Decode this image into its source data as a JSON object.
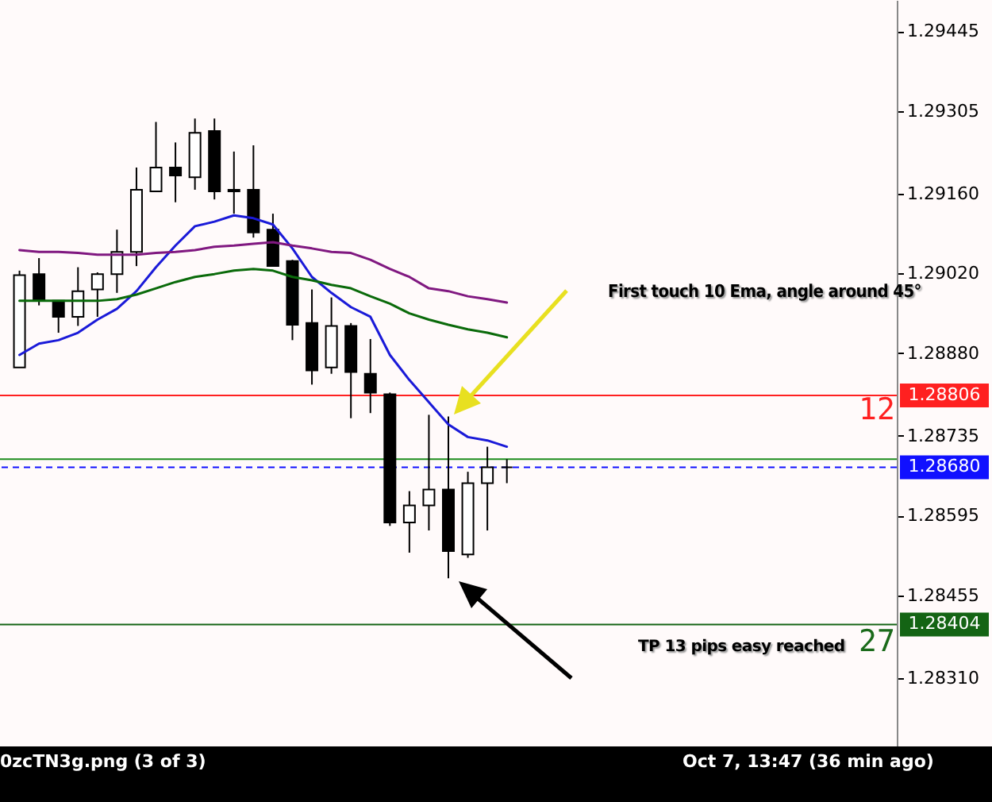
{
  "chart_data": {
    "type": "candlestick",
    "categories": [
      null,
      null,
      null,
      null,
      null,
      null,
      null,
      null,
      null,
      null,
      null,
      null,
      null,
      null,
      null,
      null,
      null,
      null,
      null,
      null,
      null,
      null,
      null,
      null,
      null,
      null,
      null,
      null,
      null,
      null,
      null,
      null,
      null,
      null,
      null,
      null,
      null,
      null,
      null,
      null,
      null,
      null,
      null,
      null,
      null
    ],
    "ohlc": [
      [
        1.28855,
        1.29025,
        1.28855,
        1.29017
      ],
      [
        1.29019,
        1.29047,
        1.28964,
        1.28972
      ],
      [
        1.28972,
        1.28972,
        1.28916,
        1.28944
      ],
      [
        1.28944,
        1.29031,
        1.28928,
        1.28989
      ],
      [
        1.28992,
        1.29022,
        1.28944,
        1.29019
      ],
      [
        1.29019,
        1.29097,
        1.28986,
        1.29058
      ],
      [
        1.29058,
        1.29206,
        1.29033,
        1.29167
      ],
      [
        1.29164,
        1.29286,
        1.29164,
        1.29206
      ],
      [
        1.29206,
        1.2925,
        1.29145,
        1.29192
      ],
      [
        1.29189,
        1.29292,
        1.29167,
        1.29267
      ],
      [
        1.2927,
        1.29292,
        1.2915,
        1.29164
      ],
      [
        1.29167,
        1.29234,
        1.29125,
        1.29164
      ],
      [
        1.29167,
        1.29245,
        1.29083,
        1.29092
      ],
      [
        1.29097,
        1.29125,
        1.29033,
        1.29033
      ],
      [
        1.29042,
        1.29044,
        1.28903,
        1.2893
      ],
      [
        1.28933,
        1.28992,
        1.28825,
        1.2885
      ],
      [
        1.28855,
        1.28978,
        1.28844,
        1.28928
      ],
      [
        1.28928,
        1.28933,
        1.28766,
        1.28847
      ],
      [
        1.28844,
        1.28905,
        1.28775,
        1.28811
      ],
      [
        1.28808,
        1.28811,
        1.28577,
        1.28583
      ],
      [
        1.28583,
        1.28638,
        1.2853,
        1.28613
      ],
      [
        1.28613,
        1.28772,
        1.28569,
        1.28641
      ],
      [
        1.28641,
        1.28769,
        1.28485,
        1.28533
      ],
      [
        1.28527,
        1.28672,
        1.28521,
        1.28652
      ],
      [
        1.28652,
        1.28716,
        1.28569,
        1.2868
      ],
      [
        1.2868,
        1.28694,
        1.28652,
        1.2868
      ],
      null,
      null,
      null,
      null,
      null,
      null,
      null,
      null,
      null,
      null,
      null,
      null,
      null,
      null,
      null,
      null,
      null,
      null,
      null
    ],
    "series": [
      {
        "type": "line",
        "color": "#1a1ad8",
        "values": [
          1.28877,
          1.28897,
          1.28903,
          1.28916,
          1.28939,
          1.28958,
          1.28989,
          1.29031,
          1.29069,
          1.29103,
          1.29111,
          1.29122,
          1.29117,
          1.29106,
          1.29064,
          1.29014,
          1.28986,
          1.28961,
          1.28944,
          1.28877,
          1.28833,
          1.28794,
          1.28755,
          1.28733,
          1.28727,
          1.28716,
          null,
          null,
          null,
          null,
          null,
          null,
          null,
          null,
          null,
          null,
          null,
          null,
          null,
          null,
          null,
          null,
          null,
          null,
          null
        ]
      },
      {
        "type": "line",
        "color": "#0a6a0a",
        "values": [
          1.28972,
          1.28972,
          1.28972,
          1.28972,
          1.28972,
          1.28975,
          1.28983,
          1.28994,
          1.29005,
          1.29014,
          1.29019,
          1.29025,
          1.29028,
          1.29025,
          1.29014,
          1.29008,
          1.29,
          1.28994,
          1.2898,
          1.28967,
          1.2895,
          1.28939,
          1.2893,
          1.28922,
          1.28916,
          1.28908,
          null,
          null,
          null,
          null,
          null,
          null,
          null,
          null,
          null,
          null,
          null,
          null,
          null,
          null,
          null,
          null,
          null,
          null,
          null
        ]
      },
      {
        "type": "line",
        "color": "#801880",
        "values": [
          1.29061,
          1.29058,
          1.29058,
          1.29056,
          1.29053,
          1.29053,
          1.29053,
          1.29056,
          1.29058,
          1.29061,
          1.29067,
          1.29069,
          1.29072,
          1.29075,
          1.29069,
          1.29064,
          1.29058,
          1.29056,
          1.29044,
          1.29028,
          1.29014,
          1.28994,
          1.28989,
          1.2898,
          1.28975,
          1.28969,
          null,
          null,
          null,
          null,
          null,
          null,
          null,
          null,
          null,
          null,
          null,
          null,
          null,
          null,
          null,
          null,
          null,
          null,
          null
        ]
      }
    ],
    "ylim": [
      1.2819,
      1.295
    ],
    "yticks": [
      {
        "value": 1.2831,
        "label": "1.28310"
      },
      1.28455,
      1.28595,
      1.28735,
      {
        "value": 1.2888,
        "label": "1.28880"
      },
      {
        "value": 1.2902,
        "label": "1.29020"
      },
      {
        "value": 1.2916,
        "label": "1.29160"
      },
      1.29305,
      1.29445
    ],
    "tick_labels": "y",
    "ref_lines": [
      {
        "axis": "y",
        "value": 1.28806,
        "label": "1.28806",
        "color": "#ff2020"
      },
      {
        "axis": "y",
        "value": 1.28694,
        "label": null,
        "color": "#1e8c1e"
      },
      {
        "axis": "y",
        "value": 1.2868,
        "label": "1.28680",
        "color": "#1010ff",
        "line_style": "dashed"
      },
      {
        "axis": "y",
        "value": 1.28404,
        "label": "1.28404",
        "color": "#146414"
      }
    ],
    "annotations": [
      "First touch 10 Ema, angle around 45°",
      "12",
      "TP 13 pips easy reached",
      "27",
      "0zcTN3g.png (3 of 3)",
      "Oct 7, 13:47 (36 min ago)"
    ]
  }
}
